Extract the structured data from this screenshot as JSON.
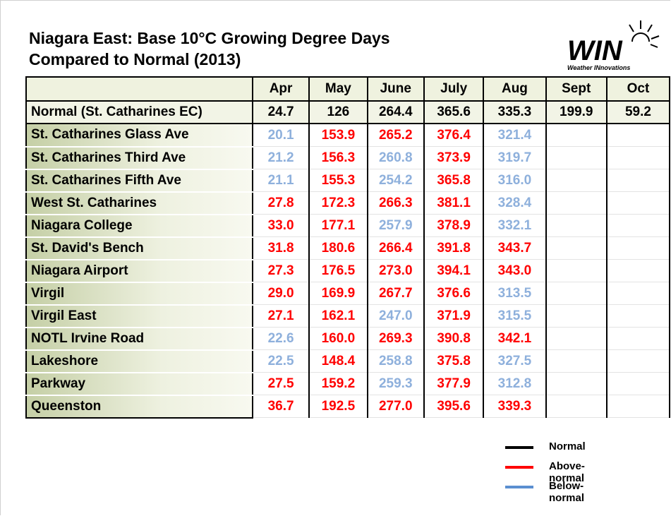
{
  "header": {
    "title_lines": [
      "Niagara East: Base 10°C Growing Degree Days",
      "Compared to Normal (2013)"
    ],
    "logo": {
      "text": "WIN",
      "tagline": "Weather INnovations"
    }
  },
  "table": {
    "columns": [
      "Apr",
      "May",
      "June",
      "July",
      "Aug",
      "Sept",
      "Oct"
    ],
    "normal": {
      "name": "Normal (St. Catharines EC)",
      "values": [
        "24.7",
        "126",
        "264.4",
        "365.6",
        "335.3",
        "199.9",
        "59.2"
      ]
    },
    "rows": [
      {
        "name": "St. Catharines Glass Ave",
        "values": [
          "20.1",
          "153.9",
          "265.2",
          "376.4",
          "321.4"
        ],
        "colors": [
          "#8eb0dc",
          "#ff0000",
          "#ff0000",
          "#ff0000",
          "#8eb0dc"
        ]
      },
      {
        "name": "St. Catharines Third Ave",
        "values": [
          "21.2",
          "156.3",
          "260.8",
          "373.9",
          "319.7"
        ],
        "colors": [
          "#8eb0dc",
          "#ff0000",
          "#8eb0dc",
          "#ff0000",
          "#8eb0dc"
        ]
      },
      {
        "name": "St. Catharines Fifth Ave",
        "values": [
          "21.1",
          "155.3",
          "254.2",
          "365.8",
          "316.0"
        ],
        "colors": [
          "#8eb0dc",
          "#ff0000",
          "#8eb0dc",
          "#ff0000",
          "#8eb0dc"
        ]
      },
      {
        "name": "West St. Catharines",
        "values": [
          "27.8",
          "172.3",
          "266.3",
          "381.1",
          "328.4"
        ],
        "colors": [
          "#ff0000",
          "#ff0000",
          "#ff0000",
          "#ff0000",
          "#8eb0dc"
        ]
      },
      {
        "name": "Niagara College",
        "values": [
          "33.0",
          "177.1",
          "257.9",
          "378.9",
          "332.1"
        ],
        "colors": [
          "#ff0000",
          "#ff0000",
          "#8eb0dc",
          "#ff0000",
          "#8eb0dc"
        ]
      },
      {
        "name": "St. David's Bench",
        "values": [
          "31.8",
          "180.6",
          "266.4",
          "391.8",
          "343.7"
        ],
        "colors": [
          "#ff0000",
          "#ff0000",
          "#ff0000",
          "#ff0000",
          "#ff0000"
        ]
      },
      {
        "name": "Niagara Airport",
        "values": [
          "27.3",
          "176.5",
          "273.0",
          "394.1",
          "343.0"
        ],
        "colors": [
          "#ff0000",
          "#ff0000",
          "#ff0000",
          "#ff0000",
          "#ff0000"
        ]
      },
      {
        "name": "Virgil",
        "values": [
          "29.0",
          "169.9",
          "267.7",
          "376.6",
          "313.5"
        ],
        "colors": [
          "#ff0000",
          "#ff0000",
          "#ff0000",
          "#ff0000",
          "#8eb0dc"
        ]
      },
      {
        "name": "Virgil East",
        "values": [
          "27.1",
          "162.1",
          "247.0",
          "371.9",
          "315.5"
        ],
        "colors": [
          "#ff0000",
          "#ff0000",
          "#8eb0dc",
          "#ff0000",
          "#8eb0dc"
        ]
      },
      {
        "name": "NOTL Irvine Road",
        "values": [
          "22.6",
          "160.0",
          "269.3",
          "390.8",
          "342.1"
        ],
        "colors": [
          "#8eb0dc",
          "#ff0000",
          "#ff0000",
          "#ff0000",
          "#ff0000"
        ]
      },
      {
        "name": "Lakeshore",
        "values": [
          "22.5",
          "148.4",
          "258.8",
          "375.8",
          "327.5"
        ],
        "colors": [
          "#8eb0dc",
          "#ff0000",
          "#8eb0dc",
          "#ff0000",
          "#8eb0dc"
        ]
      },
      {
        "name": "Parkway",
        "values": [
          "27.5",
          "159.2",
          "259.3",
          "377.9",
          "312.8"
        ],
        "colors": [
          "#ff0000",
          "#ff0000",
          "#8eb0dc",
          "#ff0000",
          "#8eb0dc"
        ]
      },
      {
        "name": "Queenston",
        "values": [
          "36.7",
          "192.5",
          "277.0",
          "395.6",
          "339.3"
        ],
        "colors": [
          "#ff0000",
          "#ff0000",
          "#ff0000",
          "#ff0000",
          "#ff0000"
        ]
      }
    ]
  },
  "legend": [
    {
      "name": "Normal",
      "color": "#000000"
    },
    {
      "name": "Above-normal",
      "color": "#ff0000"
    },
    {
      "name": "Below-normal",
      "color": "#5b8fd0"
    }
  ]
}
